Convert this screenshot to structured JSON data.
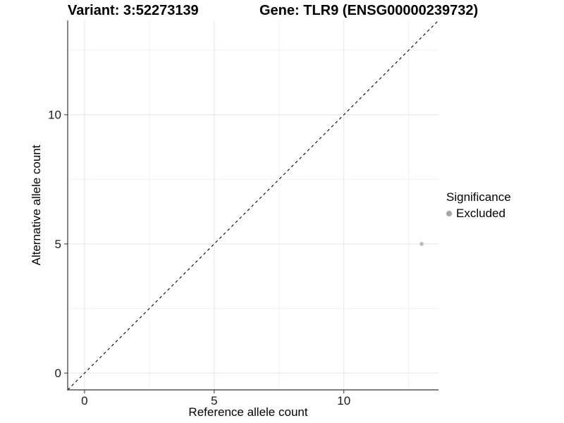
{
  "chart_data": {
    "type": "scatter",
    "title_left": "Variant: 3:52273139",
    "title_right": "Gene: TLR9 (ENSG00000239732)",
    "xlabel": "Reference allele count",
    "ylabel": "Alternative allele count",
    "xlim": [
      -0.65,
      13.65
    ],
    "ylim": [
      -0.65,
      13.65
    ],
    "x_ticks": [
      0,
      5,
      10
    ],
    "y_ticks": [
      0,
      5,
      10
    ],
    "grid": "major+minor",
    "identity_line": {
      "equation": "y = x",
      "style": "dashed",
      "color": "#000000"
    },
    "series": [
      {
        "name": "Excluded",
        "color": "#b9b9b9",
        "point_radius_px": 2.8,
        "points": [
          [
            13,
            5
          ]
        ]
      }
    ],
    "legend": {
      "position": "right",
      "title": "Significance",
      "entries": [
        {
          "label": "Excluded",
          "color": "#a6a6a6"
        }
      ]
    },
    "colors": {
      "grid_major": "#e4e4e4",
      "grid_minor": "#f1f1f1",
      "axis_line": "#333333",
      "tick": "#333333"
    }
  }
}
